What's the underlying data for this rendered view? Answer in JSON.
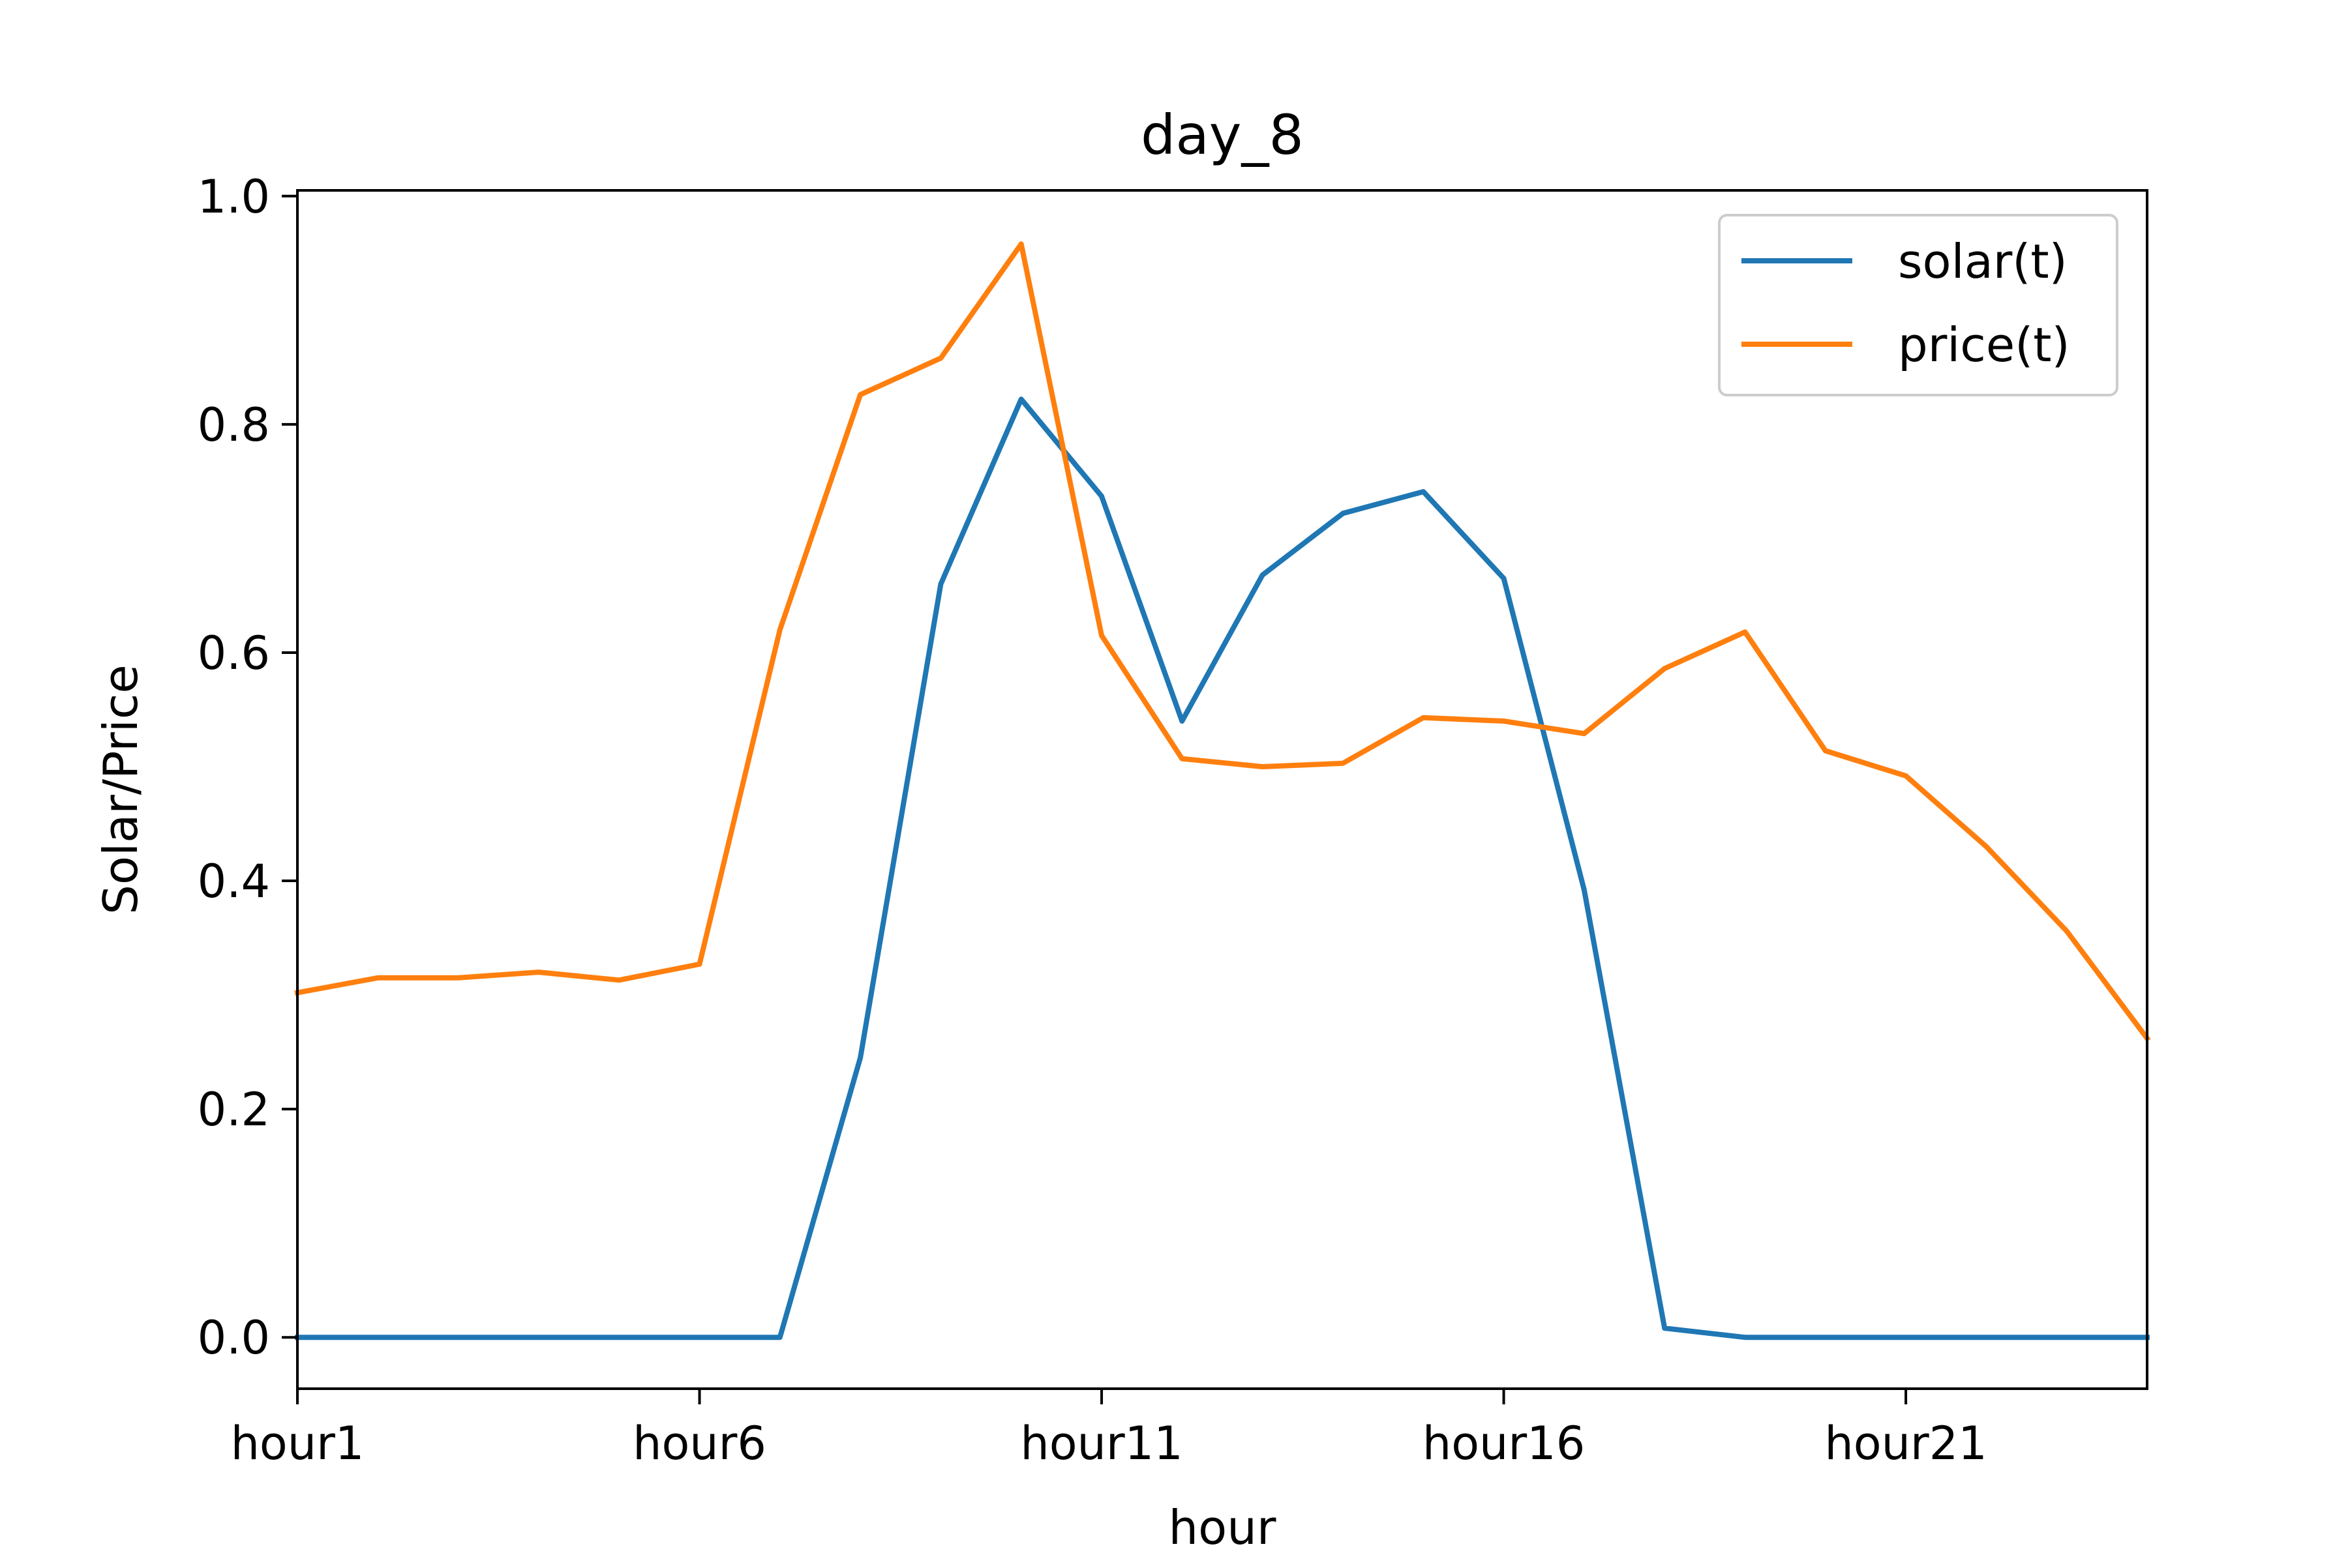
{
  "chart_data": {
    "type": "line",
    "title": "day_8",
    "xlabel": "hour",
    "ylabel": "Solar/Price",
    "x": [
      "hour1",
      "hour2",
      "hour3",
      "hour4",
      "hour5",
      "hour6",
      "hour7",
      "hour8",
      "hour9",
      "hour10",
      "hour11",
      "hour12",
      "hour13",
      "hour14",
      "hour15",
      "hour16",
      "hour17",
      "hour18",
      "hour19",
      "hour20",
      "hour21",
      "hour22",
      "hour23",
      "hour24"
    ],
    "xtick_labels": [
      "hour1",
      "hour6",
      "hour11",
      "hour16",
      "hour21"
    ],
    "ylim": [
      -0.045,
      1.005
    ],
    "yticks": [
      0.0,
      0.2,
      0.4,
      0.6,
      0.8,
      1.0
    ],
    "ytick_labels": [
      "0.0",
      "0.2",
      "0.4",
      "0.6",
      "0.8",
      "1.0"
    ],
    "grid": false,
    "legend_position": "top-right",
    "series": [
      {
        "name": "solar(t)",
        "color": "#1f77b4",
        "values": [
          0.0,
          0.0,
          0.0,
          0.0,
          0.0,
          0.0,
          0.0,
          0.245,
          0.66,
          0.822,
          0.737,
          0.54,
          0.668,
          0.722,
          0.741,
          0.665,
          0.392,
          0.008,
          0.0,
          0.0,
          0.0,
          0.0,
          0.0,
          0.0
        ]
      },
      {
        "name": "price(t)",
        "color": "#ff7f0e",
        "values": [
          0.302,
          0.315,
          0.315,
          0.32,
          0.313,
          0.327,
          0.62,
          0.826,
          0.858,
          0.958,
          0.615,
          0.507,
          0.5,
          0.503,
          0.543,
          0.54,
          0.529,
          0.586,
          0.618,
          0.514,
          0.492,
          0.43,
          0.356,
          0.262
        ]
      }
    ]
  }
}
